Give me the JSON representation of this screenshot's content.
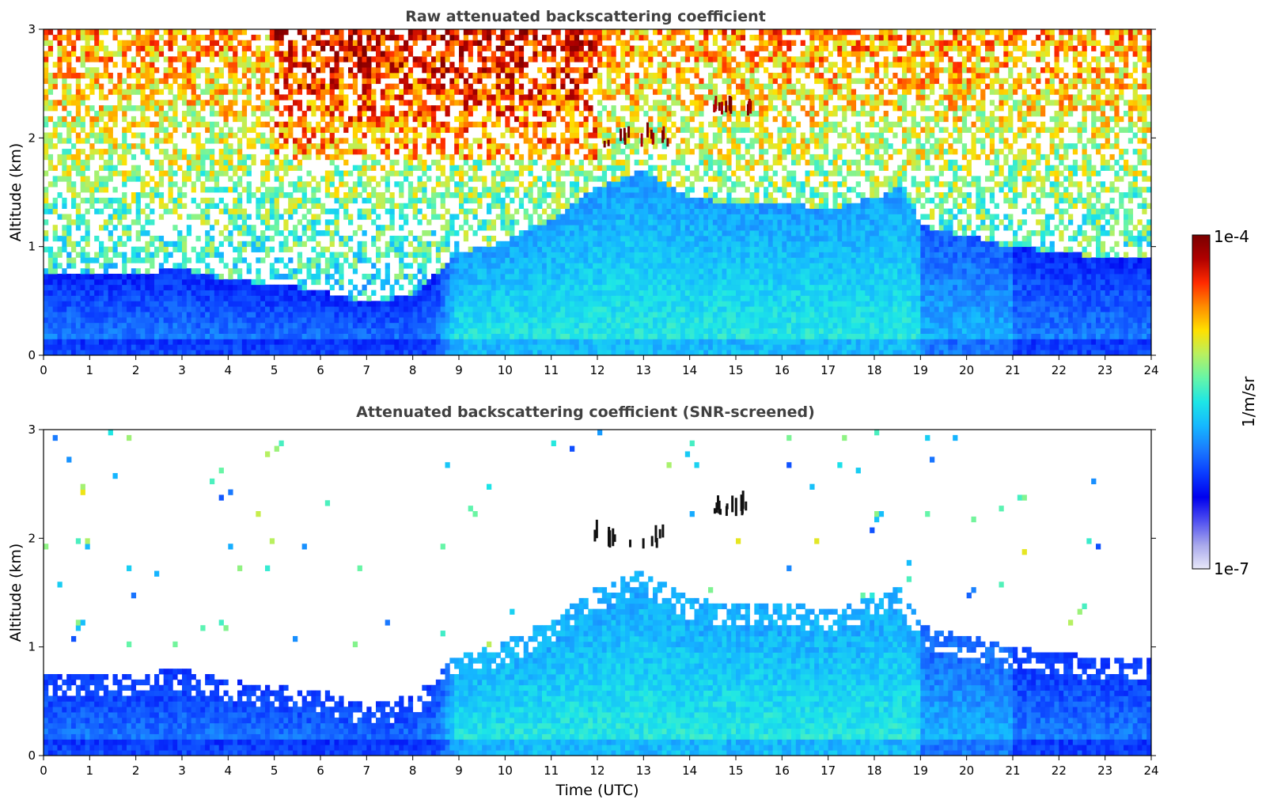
{
  "chart_data": [
    {
      "type": "heatmap",
      "title": "Raw attenuated backscattering coefficient",
      "xlabel": "",
      "ylabel": "Altitude (km)",
      "xlim": [
        0,
        24
      ],
      "ylim": [
        0,
        3
      ],
      "xticks": [
        "0",
        "1",
        "2",
        "3",
        "4",
        "5",
        "6",
        "7",
        "8",
        "9",
        "10",
        "11",
        "12",
        "13",
        "14",
        "15",
        "16",
        "17",
        "18",
        "19",
        "20",
        "21",
        "22",
        "23",
        "24"
      ],
      "yticks": [
        "0",
        "1",
        "2",
        "3"
      ],
      "variant": "raw",
      "features": [
        {
          "label": "cloud",
          "time_range": [
            11.8,
            13.5
          ],
          "altitude_range": [
            1.9,
            2.15
          ]
        },
        {
          "label": "cloud",
          "time_range": [
            14.5,
            15.3
          ],
          "altitude_range": [
            2.2,
            2.35
          ]
        }
      ]
    },
    {
      "type": "heatmap",
      "title": "Attenuated backscattering coefficient (SNR-screened)",
      "xlabel": "Time (UTC)",
      "ylabel": "Altitude (km)",
      "xlim": [
        0,
        24
      ],
      "ylim": [
        0,
        3
      ],
      "xticks": [
        "0",
        "1",
        "2",
        "3",
        "4",
        "5",
        "6",
        "7",
        "8",
        "9",
        "10",
        "11",
        "12",
        "13",
        "14",
        "15",
        "16",
        "17",
        "18",
        "19",
        "20",
        "21",
        "22",
        "23",
        "24"
      ],
      "yticks": [
        "0",
        "1",
        "2",
        "3"
      ],
      "variant": "screened",
      "boundary_layer_top_km": {
        "time": [
          0,
          2,
          3,
          4,
          5,
          6,
          7,
          8,
          9,
          10,
          11,
          12,
          13,
          14,
          15,
          16,
          17,
          18,
          18.6,
          19,
          20,
          21,
          22,
          23,
          23.9
        ],
        "altitude": [
          0.75,
          0.75,
          0.8,
          0.7,
          0.65,
          0.6,
          0.48,
          0.55,
          0.95,
          1.05,
          1.25,
          1.55,
          1.7,
          1.45,
          1.4,
          1.4,
          1.35,
          1.45,
          1.55,
          1.2,
          1.1,
          1.0,
          0.95,
          0.9,
          0.9
        ]
      }
    }
  ],
  "colorbar": {
    "label": "1/m/sr",
    "max_label": "1e-4",
    "min_label": "1e-7",
    "scale": "log",
    "range": [
      1e-07,
      0.0001
    ],
    "colors": [
      "#e8e8f8",
      "#a8a8ec",
      "#5050f0",
      "#0000ee",
      "#0a3cff",
      "#1a7bff",
      "#15b8ff",
      "#1de6e6",
      "#66f5a8",
      "#b8f060",
      "#ffe000",
      "#ff8c00",
      "#ff2a00",
      "#b00000",
      "#7a0000"
    ]
  }
}
